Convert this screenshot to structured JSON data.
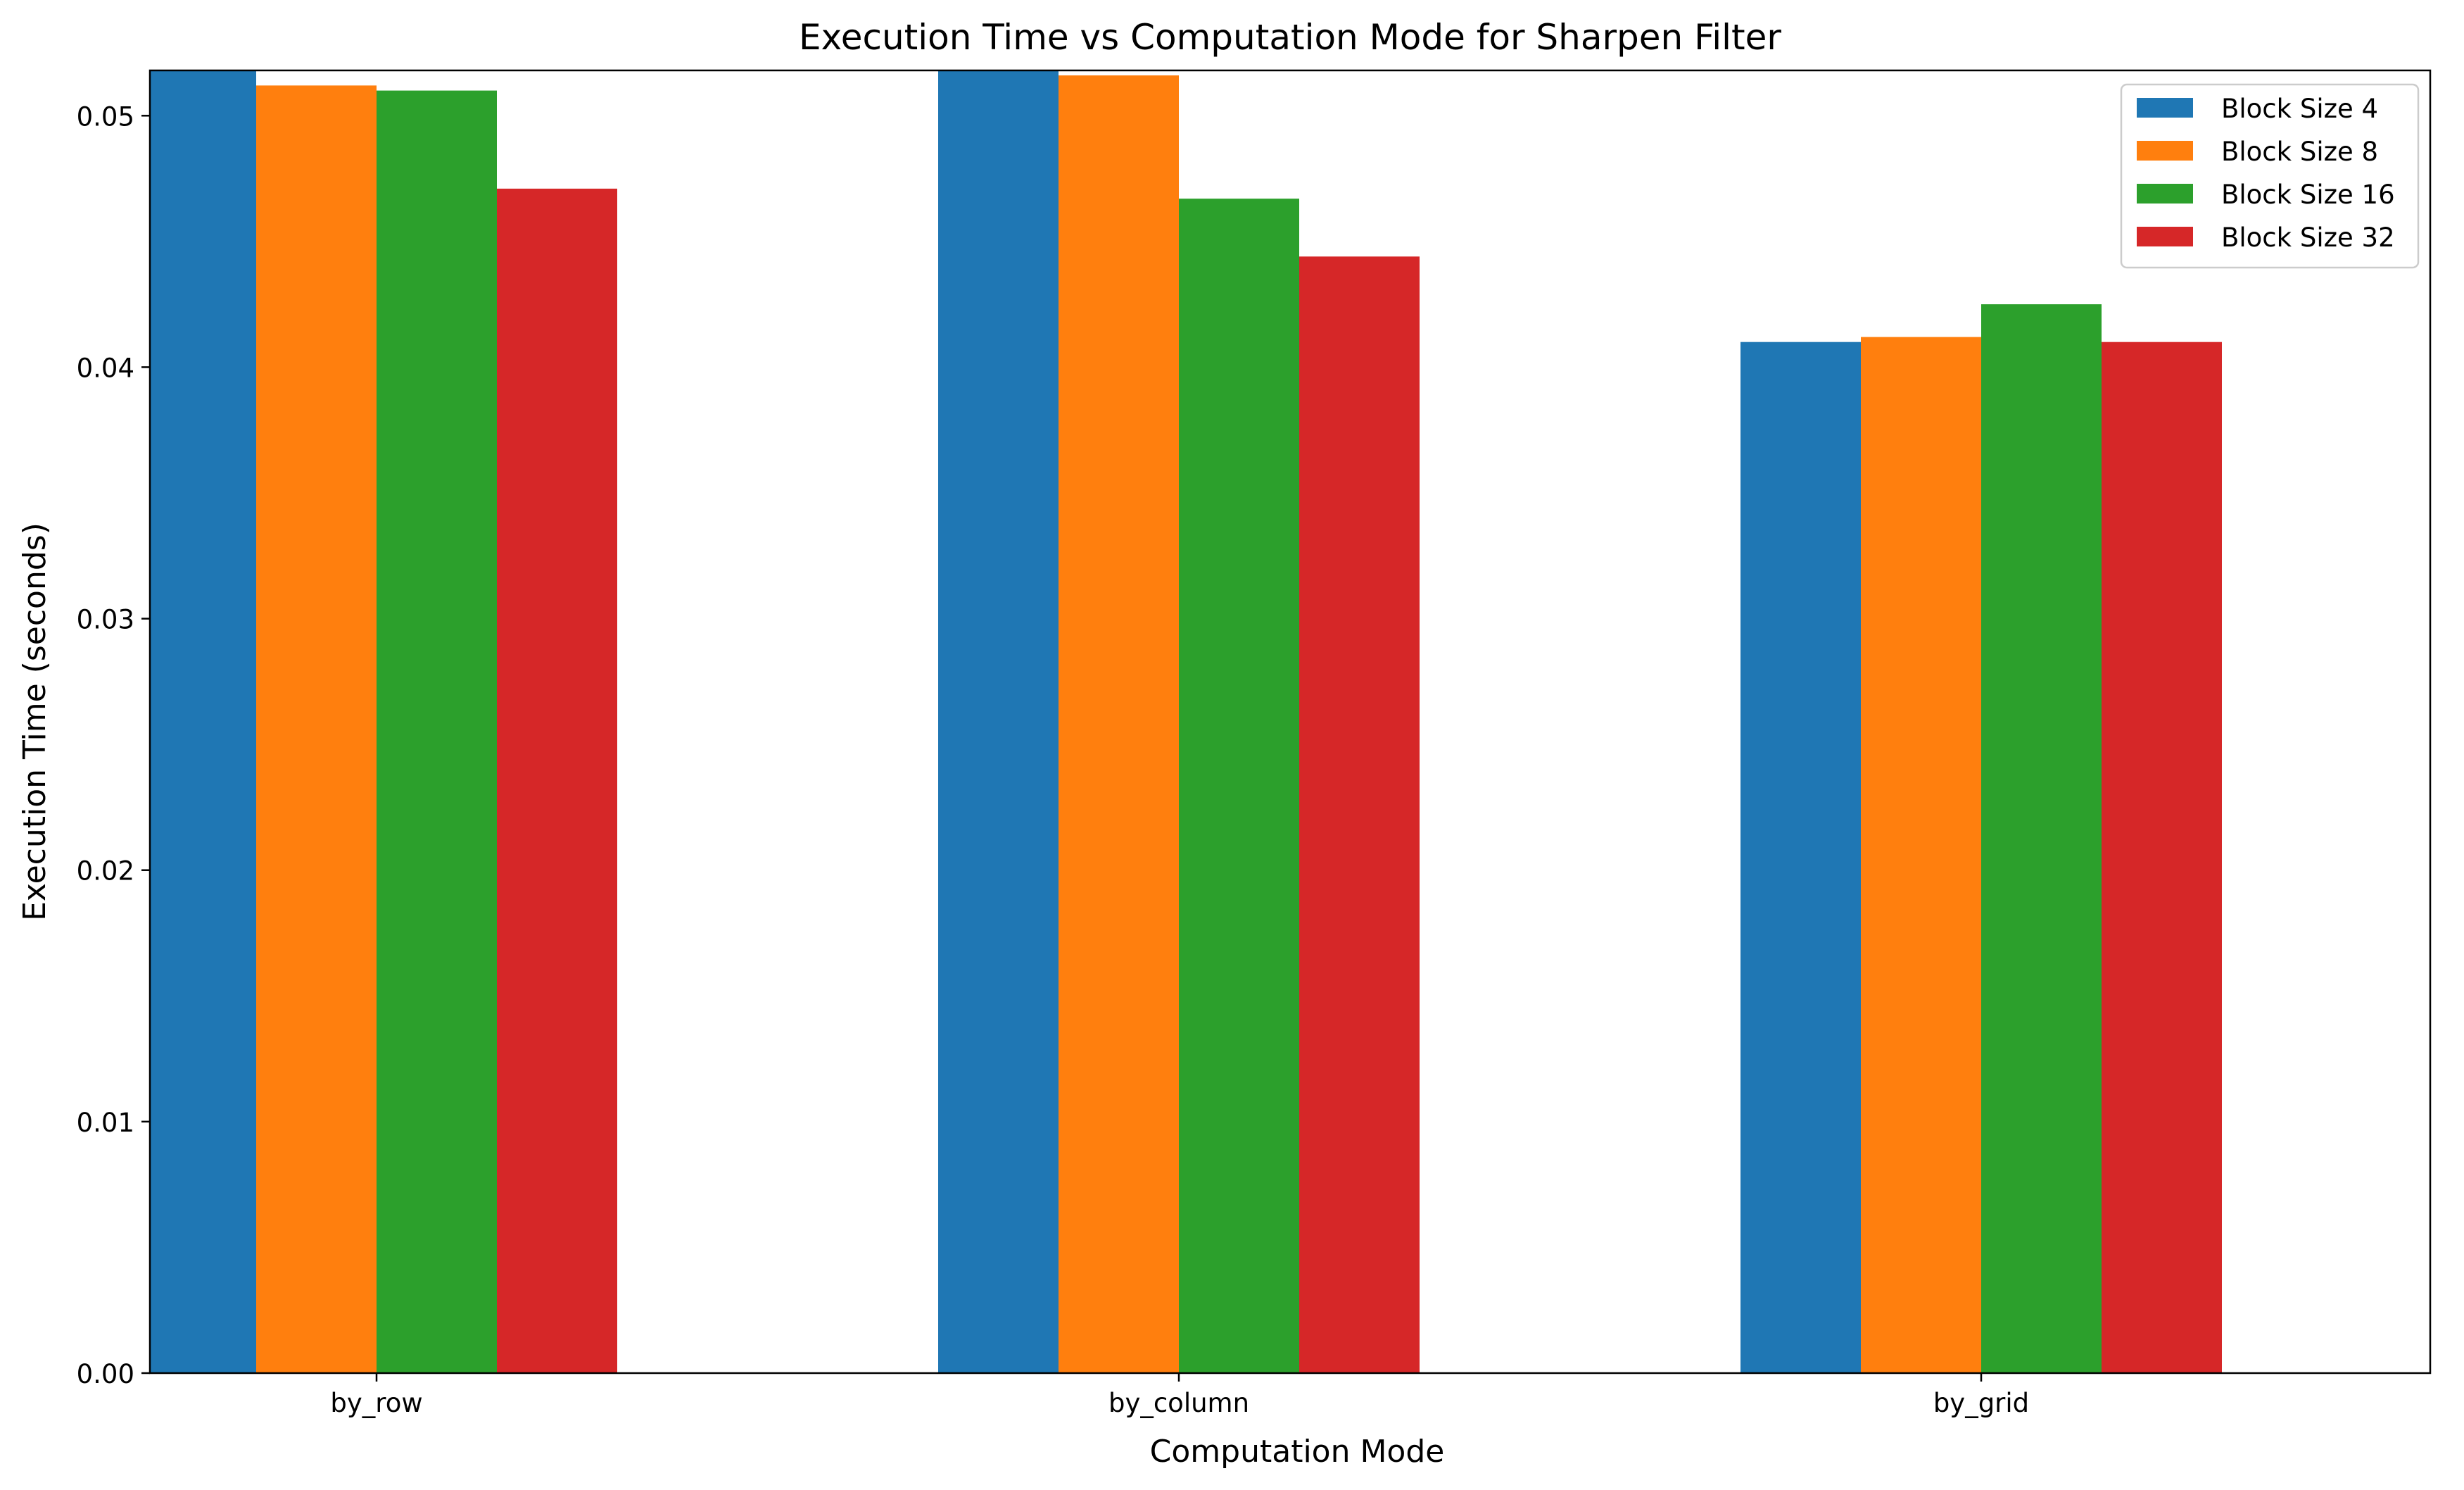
{
  "chart_data": {
    "type": "bar",
    "title": "Execution Time vs Computation Mode for Sharpen Filter",
    "xlabel": "Computation Mode",
    "ylabel": "Execution Time (seconds)",
    "categories": [
      "by_row",
      "by_column",
      "by_grid"
    ],
    "ylim": [
      0,
      0.0518
    ],
    "yticks": [
      0.0,
      0.01,
      0.02,
      0.03,
      0.04,
      0.05
    ],
    "ytick_labels": [
      "0.00",
      "0.01",
      "0.02",
      "0.03",
      "0.04",
      "0.05"
    ],
    "grid": false,
    "legend_position": "top-right",
    "series": [
      {
        "name": "Block Size 4",
        "color": "#1f77b4",
        "values": [
          0.0531,
          0.0532,
          0.041
        ]
      },
      {
        "name": "Block Size 8",
        "color": "#ff7f0e",
        "values": [
          0.0512,
          0.0516,
          0.0412
        ]
      },
      {
        "name": "Block Size 16",
        "color": "#2ca02c",
        "values": [
          0.051,
          0.0467,
          0.0425
        ]
      },
      {
        "name": "Block Size 32",
        "color": "#d62728",
        "values": [
          0.0471,
          0.0444,
          0.041
        ]
      }
    ]
  }
}
